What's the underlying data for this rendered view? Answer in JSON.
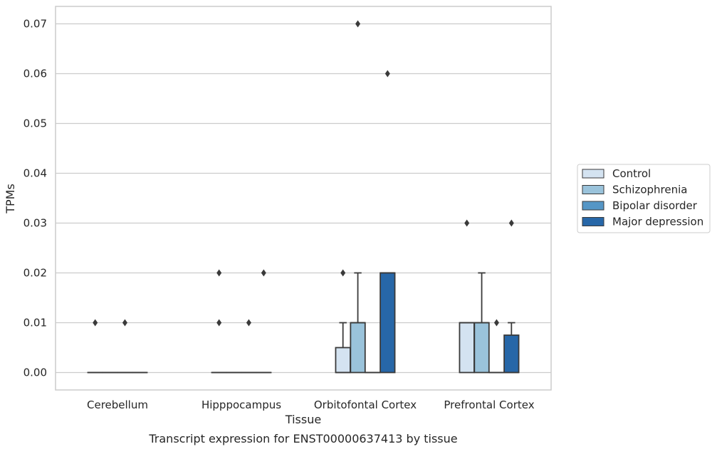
{
  "chart_data": {
    "type": "box",
    "caption": "Transcript expression for ENST00000637413 by tissue",
    "xlabel": "Tissue",
    "ylabel": "TPMs",
    "ylim": [
      -0.0035,
      0.0735
    ],
    "yticks": [
      "0.00",
      "0.01",
      "0.02",
      "0.03",
      "0.04",
      "0.05",
      "0.06",
      "0.07"
    ],
    "ytick_values": [
      0,
      0.01,
      0.02,
      0.03,
      0.04,
      0.05,
      0.06,
      0.07
    ],
    "grid": "horizontal",
    "legend_position": "right",
    "categories": [
      "Cerebellum",
      "Hipppocampus",
      "Orbitofontal Cortex",
      "Prefrontal Cortex"
    ],
    "series": [
      {
        "name": "Control",
        "color": "#d4e3f1",
        "boxes": [
          {
            "q1": 0,
            "median": 0,
            "q3": 0,
            "whisker_low": 0,
            "whisker_high": 0,
            "outliers": [
              0.01
            ]
          },
          {
            "q1": 0,
            "median": 0,
            "q3": 0,
            "whisker_low": 0,
            "whisker_high": 0,
            "outliers": [
              0.01,
              0.02
            ]
          },
          {
            "q1": 0,
            "median": 0,
            "q3": 0.005,
            "whisker_low": 0,
            "whisker_high": 0.01,
            "outliers": [
              0.02
            ]
          },
          {
            "q1": 0,
            "median": 0.01,
            "q3": 0.01,
            "whisker_low": 0,
            "whisker_high": 0.01,
            "outliers": [
              0.03
            ]
          }
        ]
      },
      {
        "name": "Schizophrenia",
        "color": "#9ac3db",
        "boxes": [
          {
            "q1": 0,
            "median": 0,
            "q3": 0,
            "whisker_low": 0,
            "whisker_high": 0,
            "outliers": []
          },
          {
            "q1": 0,
            "median": 0,
            "q3": 0,
            "whisker_low": 0,
            "whisker_high": 0,
            "outliers": []
          },
          {
            "q1": 0,
            "median": 0.01,
            "q3": 0.01,
            "whisker_low": 0,
            "whisker_high": 0.02,
            "outliers": [
              0.07
            ]
          },
          {
            "q1": 0,
            "median": 0.01,
            "q3": 0.01,
            "whisker_low": 0,
            "whisker_high": 0.02,
            "outliers": []
          }
        ]
      },
      {
        "name": "Bipolar disorder",
        "color": "#5596c6",
        "boxes": [
          {
            "q1": 0,
            "median": 0,
            "q3": 0,
            "whisker_low": 0,
            "whisker_high": 0,
            "outliers": [
              0.01
            ]
          },
          {
            "q1": 0,
            "median": 0,
            "q3": 0,
            "whisker_low": 0,
            "whisker_high": 0,
            "outliers": [
              0.01
            ]
          },
          {
            "q1": 0,
            "median": 0,
            "q3": 0,
            "whisker_low": 0,
            "whisker_high": 0,
            "outliers": []
          },
          {
            "q1": 0,
            "median": 0,
            "q3": 0,
            "whisker_low": 0,
            "whisker_high": 0,
            "outliers": [
              0.01
            ]
          }
        ]
      },
      {
        "name": "Major depression",
        "color": "#2767a8",
        "boxes": [
          {
            "q1": 0,
            "median": 0,
            "q3": 0,
            "whisker_low": 0,
            "whisker_high": 0,
            "outliers": []
          },
          {
            "q1": 0,
            "median": 0,
            "q3": 0,
            "whisker_low": 0,
            "whisker_high": 0,
            "outliers": [
              0.02
            ]
          },
          {
            "q1": 0,
            "median": 0.02,
            "q3": 0.02,
            "whisker_low": 0,
            "whisker_high": 0.02,
            "outliers": [
              0.06
            ]
          },
          {
            "q1": 0,
            "median": 0,
            "q3": 0.0075,
            "whisker_low": 0,
            "whisker_high": 0.01,
            "outliers": [
              0.03
            ]
          }
        ]
      }
    ]
  }
}
